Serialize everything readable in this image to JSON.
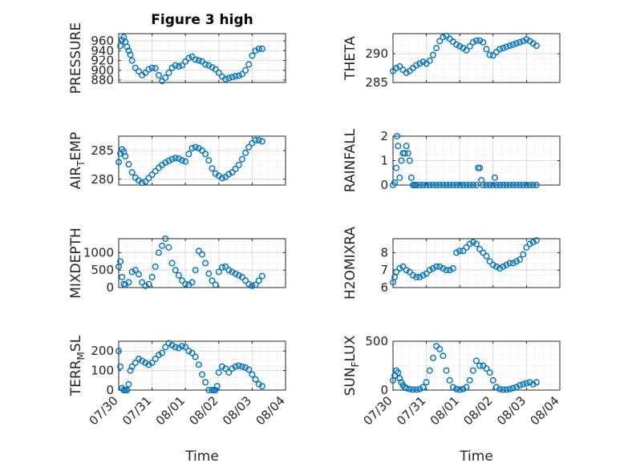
{
  "chart_data": [
    {
      "type": "scatter",
      "title": "Figure 3 high",
      "xlabel": "",
      "ylabel": "PRESSURE",
      "xlim": [
        "07/30",
        "08/04"
      ],
      "ylim": [
        875,
        975
      ],
      "yticks": [
        880,
        900,
        920,
        940,
        960
      ],
      "xticks": [
        "07/30",
        "07/31",
        "08/01",
        "08/02",
        "08/03",
        "08/04"
      ],
      "grid": true,
      "marker_color": "#0072BD",
      "x_days": [
        0.05,
        0.1,
        0.15,
        0.2,
        0.25,
        0.3,
        0.35,
        0.4,
        0.5,
        0.6,
        0.7,
        0.8,
        0.9,
        1.0,
        1.1,
        1.2,
        1.3,
        1.4,
        1.5,
        1.6,
        1.7,
        1.8,
        1.9,
        2.0,
        2.1,
        2.2,
        2.3,
        2.4,
        2.5,
        2.6,
        2.7,
        2.8,
        2.9,
        3.0,
        3.1,
        3.2,
        3.3,
        3.4,
        3.5,
        3.6,
        3.7,
        3.8,
        3.9,
        4.0,
        4.1,
        4.2,
        4.3
      ],
      "values": [
        950,
        962,
        968,
        958,
        948,
        940,
        932,
        920,
        905,
        898,
        890,
        895,
        902,
        905,
        904,
        890,
        878,
        885,
        895,
        905,
        910,
        908,
        910,
        918,
        925,
        928,
        922,
        920,
        918,
        912,
        910,
        906,
        902,
        895,
        887,
        882,
        884,
        886,
        888,
        889,
        892,
        900,
        912,
        930,
        940,
        944,
        944
      ]
    },
    {
      "type": "scatter",
      "title": "",
      "xlabel": "",
      "ylabel": "THETA",
      "xlim": [
        "07/30",
        "08/04"
      ],
      "ylim": [
        285,
        293.5
      ],
      "yticks": [
        285,
        290
      ],
      "xticks": [
        "07/30",
        "07/31",
        "08/01",
        "08/02",
        "08/03",
        "08/04"
      ],
      "grid": true,
      "marker_color": "#0072BD",
      "x_days": [
        0.0,
        0.1,
        0.2,
        0.3,
        0.4,
        0.5,
        0.6,
        0.7,
        0.8,
        0.9,
        1.0,
        1.1,
        1.2,
        1.3,
        1.4,
        1.5,
        1.6,
        1.7,
        1.8,
        1.9,
        2.0,
        2.1,
        2.2,
        2.3,
        2.4,
        2.5,
        2.6,
        2.7,
        2.8,
        2.9,
        3.0,
        3.1,
        3.2,
        3.3,
        3.4,
        3.5,
        3.6,
        3.7,
        3.8,
        3.9,
        4.0,
        4.1,
        4.2,
        4.3
      ],
      "values": [
        287,
        287.5,
        287.8,
        287.2,
        286.7,
        287.0,
        287.5,
        288.0,
        288.3,
        288.6,
        288.3,
        288.8,
        289.8,
        291.0,
        292.2,
        292.9,
        293.1,
        292.6,
        292.1,
        291.6,
        291.3,
        291.0,
        290.6,
        291.3,
        292.0,
        292.3,
        292.3,
        292.0,
        290.8,
        289.8,
        289.7,
        290.3,
        290.8,
        291.0,
        291.2,
        291.4,
        291.6,
        291.8,
        292.0,
        292.2,
        292.5,
        292.2,
        291.8,
        291.4
      ]
    },
    {
      "type": "scatter",
      "title": "",
      "xlabel": "",
      "ylabel": "AIR_TEMP",
      "ylabel_main": "AIR",
      "ylabel_sub": "T",
      "ylabel_rest": "EMP",
      "xlim": [
        "07/30",
        "08/04"
      ],
      "ylim": [
        279,
        287.5
      ],
      "yticks": [
        280,
        285
      ],
      "xticks": [
        "07/30",
        "07/31",
        "08/01",
        "08/02",
        "08/03",
        "08/04"
      ],
      "grid": true,
      "marker_color": "#0072BD",
      "x_days": [
        0.0,
        0.05,
        0.1,
        0.15,
        0.2,
        0.3,
        0.4,
        0.5,
        0.6,
        0.7,
        0.8,
        0.9,
        1.0,
        1.1,
        1.2,
        1.3,
        1.4,
        1.5,
        1.6,
        1.7,
        1.8,
        1.9,
        2.0,
        2.1,
        2.2,
        2.3,
        2.4,
        2.5,
        2.6,
        2.7,
        2.8,
        2.9,
        3.0,
        3.1,
        3.2,
        3.3,
        3.4,
        3.5,
        3.6,
        3.7,
        3.8,
        3.9,
        4.0,
        4.1,
        4.2,
        4.3
      ],
      "values": [
        283,
        284.5,
        285.2,
        284.8,
        284.0,
        282.6,
        281.2,
        280.3,
        279.8,
        279.4,
        279.6,
        280.2,
        280.8,
        281.4,
        282.0,
        282.5,
        282.9,
        283.2,
        283.5,
        283.7,
        283.6,
        283.3,
        283.1,
        284.4,
        285.4,
        285.6,
        285.4,
        285.0,
        284.4,
        283.3,
        281.9,
        281.0,
        280.6,
        280.2,
        280.4,
        280.9,
        281.2,
        281.8,
        282.5,
        283.5,
        284.6,
        285.6,
        286.3,
        286.8,
        286.8,
        286.6
      ]
    },
    {
      "type": "scatter",
      "title": "",
      "xlabel": "",
      "ylabel": "RAINFALL",
      "xlim": [
        "07/30",
        "08/04"
      ],
      "ylim": [
        0,
        2
      ],
      "yticks": [
        0,
        1,
        2
      ],
      "xticks": [
        "07/30",
        "07/31",
        "08/01",
        "08/02",
        "08/03",
        "08/04"
      ],
      "grid": true,
      "marker_color": "#0072BD",
      "x_days": [
        0.0,
        0.05,
        0.1,
        0.12,
        0.15,
        0.2,
        0.25,
        0.3,
        0.35,
        0.4,
        0.45,
        0.5,
        0.55,
        0.6,
        0.65,
        0.7,
        0.8,
        0.9,
        1.0,
        1.1,
        1.2,
        1.3,
        1.4,
        1.5,
        1.6,
        1.7,
        1.8,
        1.9,
        2.0,
        2.1,
        2.2,
        2.3,
        2.4,
        2.5,
        2.55,
        2.6,
        2.65,
        2.7,
        2.8,
        2.9,
        3.0,
        3.05,
        3.1,
        3.2,
        3.3,
        3.4,
        3.5,
        3.6,
        3.7,
        3.8,
        3.9,
        4.0,
        4.1,
        4.2,
        4.3
      ],
      "values": [
        0,
        0.1,
        0.7,
        2.0,
        1.6,
        0.3,
        1.0,
        1.3,
        1.3,
        1.6,
        1.3,
        1.0,
        0.3,
        0,
        0,
        0,
        0,
        0,
        0,
        0,
        0,
        0,
        0,
        0,
        0,
        0,
        0,
        0,
        0,
        0,
        0,
        0,
        0,
        0,
        0.7,
        0.7,
        0.2,
        0,
        0,
        0,
        0,
        0.3,
        0,
        0,
        0,
        0,
        0,
        0,
        0,
        0,
        0,
        0,
        0,
        0,
        0
      ]
    },
    {
      "type": "scatter",
      "title": "",
      "xlabel": "",
      "ylabel": "MIXDEPTH",
      "xlim": [
        "07/30",
        "08/04"
      ],
      "ylim": [
        0,
        1400
      ],
      "yticks": [
        0,
        500,
        1000
      ],
      "xticks": [
        "07/30",
        "07/31",
        "08/01",
        "08/02",
        "08/03",
        "08/04"
      ],
      "grid": true,
      "marker_color": "#0072BD",
      "x_days": [
        0.0,
        0.05,
        0.1,
        0.15,
        0.2,
        0.3,
        0.4,
        0.5,
        0.6,
        0.7,
        0.8,
        0.9,
        1.0,
        1.1,
        1.2,
        1.3,
        1.4,
        1.5,
        1.6,
        1.7,
        1.8,
        1.9,
        2.0,
        2.1,
        2.2,
        2.3,
        2.4,
        2.5,
        2.6,
        2.7,
        2.8,
        2.9,
        3.0,
        3.1,
        3.2,
        3.3,
        3.4,
        3.5,
        3.6,
        3.7,
        3.8,
        3.9,
        4.0,
        4.1,
        4.2,
        4.3
      ],
      "values": [
        600,
        750,
        300,
        100,
        80,
        150,
        450,
        500,
        380,
        150,
        50,
        100,
        300,
        600,
        1000,
        1200,
        1400,
        1150,
        700,
        500,
        350,
        200,
        100,
        80,
        150,
        500,
        1050,
        950,
        700,
        400,
        200,
        80,
        450,
        580,
        600,
        500,
        450,
        400,
        350,
        300,
        200,
        100,
        50,
        80,
        200,
        330
      ]
    },
    {
      "type": "scatter",
      "title": "",
      "xlabel": "",
      "ylabel": "H2OMIXRA",
      "xlim": [
        "07/30",
        "08/04"
      ],
      "ylim": [
        6,
        8.8
      ],
      "yticks": [
        6,
        7,
        8
      ],
      "xticks": [
        "07/30",
        "07/31",
        "08/01",
        "08/02",
        "08/03",
        "08/04"
      ],
      "grid": true,
      "marker_color": "#0072BD",
      "x_days": [
        0.0,
        0.05,
        0.1,
        0.2,
        0.3,
        0.4,
        0.5,
        0.6,
        0.7,
        0.8,
        0.9,
        1.0,
        1.1,
        1.2,
        1.3,
        1.4,
        1.5,
        1.6,
        1.7,
        1.8,
        1.9,
        2.0,
        2.1,
        2.2,
        2.3,
        2.4,
        2.5,
        2.6,
        2.7,
        2.8,
        2.9,
        3.0,
        3.1,
        3.2,
        3.3,
        3.4,
        3.5,
        3.6,
        3.7,
        3.8,
        3.9,
        4.0,
        4.1,
        4.2,
        4.3
      ],
      "values": [
        6.3,
        6.6,
        6.9,
        7.1,
        7.2,
        7.0,
        6.9,
        6.7,
        6.6,
        6.6,
        6.7,
        6.8,
        7.0,
        7.1,
        7.2,
        7.2,
        7.1,
        7.0,
        7.0,
        7.1,
        8.0,
        8.1,
        8.1,
        8.3,
        8.5,
        8.6,
        8.5,
        8.2,
        8.0,
        7.8,
        7.5,
        7.3,
        7.2,
        7.1,
        7.2,
        7.3,
        7.4,
        7.4,
        7.5,
        7.6,
        7.9,
        8.3,
        8.5,
        8.6,
        8.7
      ]
    },
    {
      "type": "scatter",
      "title": "",
      "xlabel": "Time",
      "ylabel": "TERR_MSL",
      "ylabel_main": "TERR",
      "ylabel_sub": "M",
      "ylabel_rest": "SL",
      "xlim": [
        "07/30",
        "08/04"
      ],
      "ylim": [
        0,
        250
      ],
      "yticks": [
        0,
        100,
        200
      ],
      "xticks": [
        "07/30",
        "07/31",
        "08/01",
        "08/02",
        "08/03",
        "08/04"
      ],
      "grid": true,
      "marker_color": "#0072BD",
      "x_days": [
        0.0,
        0.05,
        0.1,
        0.15,
        0.2,
        0.25,
        0.3,
        0.35,
        0.4,
        0.5,
        0.6,
        0.7,
        0.8,
        0.9,
        1.0,
        1.1,
        1.2,
        1.3,
        1.4,
        1.5,
        1.6,
        1.7,
        1.8,
        1.9,
        2.0,
        2.1,
        2.2,
        2.3,
        2.4,
        2.5,
        2.6,
        2.7,
        2.8,
        2.85,
        2.9,
        2.95,
        3.0,
        3.1,
        3.2,
        3.3,
        3.4,
        3.5,
        3.6,
        3.7,
        3.8,
        3.9,
        4.0,
        4.1,
        4.2,
        4.3
      ],
      "values": [
        200,
        120,
        10,
        0,
        0,
        0,
        30,
        100,
        120,
        140,
        160,
        150,
        140,
        130,
        140,
        160,
        180,
        190,
        220,
        240,
        230,
        220,
        215,
        225,
        220,
        200,
        190,
        170,
        130,
        80,
        40,
        0,
        0,
        0,
        0,
        20,
        90,
        120,
        110,
        90,
        110,
        120,
        125,
        120,
        115,
        105,
        80,
        55,
        30,
        20
      ]
    },
    {
      "type": "scatter",
      "title": "",
      "xlabel": "Time",
      "ylabel": "SUN_FLUX",
      "ylabel_main": "SUN",
      "ylabel_sub": "F",
      "ylabel_rest": "LUX",
      "xlim": [
        "07/30",
        "08/04"
      ],
      "ylim": [
        0,
        500
      ],
      "yticks": [
        0,
        500
      ],
      "xticks": [
        "07/30",
        "07/31",
        "08/01",
        "08/02",
        "08/03",
        "08/04"
      ],
      "grid": true,
      "marker_color": "#0072BD",
      "x_days": [
        0.0,
        0.05,
        0.1,
        0.15,
        0.2,
        0.25,
        0.3,
        0.35,
        0.4,
        0.5,
        0.6,
        0.7,
        0.8,
        0.9,
        1.0,
        1.1,
        1.2,
        1.3,
        1.4,
        1.5,
        1.6,
        1.7,
        1.8,
        1.9,
        2.0,
        2.1,
        2.2,
        2.3,
        2.4,
        2.5,
        2.6,
        2.7,
        2.8,
        2.9,
        3.0,
        3.1,
        3.2,
        3.3,
        3.4,
        3.5,
        3.6,
        3.7,
        3.8,
        3.9,
        4.0,
        4.1,
        4.2,
        4.3
      ],
      "values": [
        100,
        150,
        200,
        180,
        120,
        80,
        50,
        30,
        20,
        10,
        5,
        5,
        10,
        30,
        80,
        200,
        330,
        450,
        420,
        350,
        200,
        100,
        30,
        10,
        5,
        10,
        30,
        100,
        200,
        300,
        250,
        250,
        220,
        180,
        100,
        30,
        10,
        5,
        5,
        10,
        20,
        30,
        50,
        60,
        70,
        80,
        60,
        80
      ]
    }
  ]
}
